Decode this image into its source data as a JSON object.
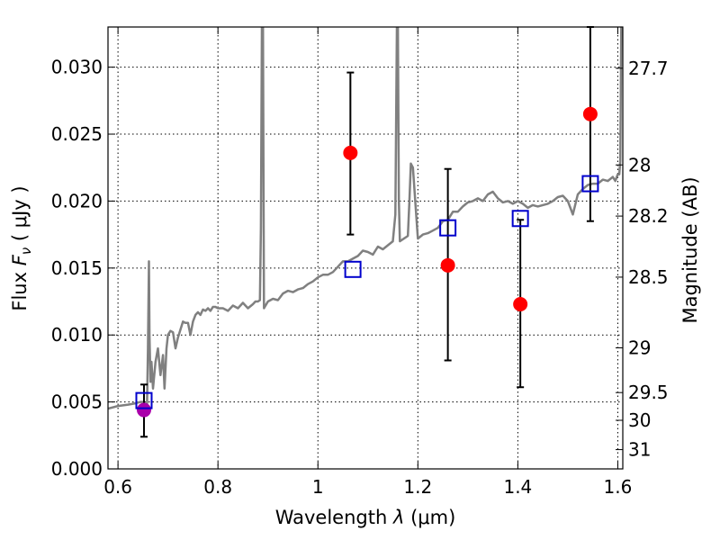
{
  "chart_data": {
    "type": "scatter",
    "xlabel_prefix": "Wavelength  ",
    "xlabel_symbol": "λ",
    "xlabel_unit": " (μm)",
    "ylabel_prefix": "Flux  ",
    "ylabel_symbol": "F",
    "ylabel_subscript": "ν",
    "ylabel_unit": "  ( μJy )",
    "ylabel_right": "Magnitude (AB)",
    "xlim": [
      0.58,
      1.61
    ],
    "ylim": [
      0.0,
      0.033
    ],
    "grid": true,
    "x_ticks": [
      0.6,
      0.8,
      1.0,
      1.2,
      1.4,
      1.6
    ],
    "x_tick_labels": [
      "0.6",
      "0.8",
      "1",
      "1.2",
      "1.4",
      "1.6"
    ],
    "y_ticks": [
      0.0,
      0.005,
      0.01,
      0.015,
      0.02,
      0.025,
      0.03
    ],
    "y_tick_labels": [
      "0.000",
      "0.005",
      "0.010",
      "0.015",
      "0.020",
      "0.025",
      "0.030"
    ],
    "right_ticks": [
      {
        "label": "27.7",
        "flux": 0.02992
      },
      {
        "label": "28",
        "flux": 0.0227
      },
      {
        "label": "28.2",
        "flux": 0.01888
      },
      {
        "label": "28.5",
        "flux": 0.01432
      },
      {
        "label": "29",
        "flux": 0.00904
      },
      {
        "label": "29.5",
        "flux": 0.0057
      },
      {
        "label": "30",
        "flux": 0.00363
      },
      {
        "label": "31",
        "flux": 0.00144
      }
    ],
    "series": [
      {
        "kind": "spectrum",
        "color": "#808080",
        "x": [
          0.58,
          0.6,
          0.62,
          0.635,
          0.645,
          0.65,
          0.655,
          0.658,
          0.66,
          0.662,
          0.663,
          0.665,
          0.667,
          0.67,
          0.675,
          0.68,
          0.685,
          0.69,
          0.693,
          0.697,
          0.7,
          0.705,
          0.71,
          0.715,
          0.72,
          0.725,
          0.73,
          0.735,
          0.74,
          0.745,
          0.75,
          0.755,
          0.76,
          0.765,
          0.77,
          0.775,
          0.78,
          0.785,
          0.79,
          0.795,
          0.8,
          0.81,
          0.82,
          0.83,
          0.84,
          0.85,
          0.86,
          0.87,
          0.875,
          0.88,
          0.884,
          0.886,
          0.888,
          0.89,
          0.892,
          0.9,
          0.91,
          0.92,
          0.93,
          0.94,
          0.95,
          0.96,
          0.97,
          0.98,
          0.99,
          1.0,
          1.01,
          1.02,
          1.03,
          1.04,
          1.05,
          1.06,
          1.07,
          1.08,
          1.09,
          1.1,
          1.11,
          1.12,
          1.13,
          1.14,
          1.15,
          1.155,
          1.158,
          1.16,
          1.162,
          1.164,
          1.168,
          1.172,
          1.176,
          1.18,
          1.183,
          1.186,
          1.19,
          1.2,
          1.21,
          1.22,
          1.23,
          1.24,
          1.25,
          1.26,
          1.27,
          1.28,
          1.29,
          1.3,
          1.31,
          1.32,
          1.33,
          1.34,
          1.35,
          1.36,
          1.37,
          1.38,
          1.39,
          1.4,
          1.41,
          1.42,
          1.43,
          1.44,
          1.45,
          1.46,
          1.47,
          1.48,
          1.49,
          1.5,
          1.51,
          1.52,
          1.53,
          1.54,
          1.55,
          1.56,
          1.57,
          1.58,
          1.59,
          1.595,
          1.6,
          1.603,
          1.605,
          1.607,
          1.61
        ],
        "y": [
          0.0045,
          0.0047,
          0.0048,
          0.0049,
          0.005,
          0.005,
          0.0048,
          0.0045,
          0.009,
          0.0155,
          0.01,
          0.0065,
          0.008,
          0.006,
          0.008,
          0.009,
          0.007,
          0.0085,
          0.006,
          0.009,
          0.01,
          0.0103,
          0.0102,
          0.009,
          0.0098,
          0.0104,
          0.011,
          0.0109,
          0.0109,
          0.01,
          0.011,
          0.0115,
          0.0117,
          0.0115,
          0.0119,
          0.0118,
          0.012,
          0.0118,
          0.0121,
          0.0121,
          0.012,
          0.012,
          0.0118,
          0.0122,
          0.012,
          0.0124,
          0.012,
          0.0123,
          0.0125,
          0.0125,
          0.0126,
          0.018,
          0.033,
          0.033,
          0.012,
          0.0125,
          0.0127,
          0.0126,
          0.0131,
          0.0133,
          0.0132,
          0.0134,
          0.0135,
          0.0138,
          0.014,
          0.0143,
          0.0145,
          0.0145,
          0.0147,
          0.0151,
          0.0155,
          0.0155,
          0.0157,
          0.0159,
          0.0163,
          0.0162,
          0.016,
          0.0166,
          0.0164,
          0.0167,
          0.017,
          0.019,
          0.033,
          0.033,
          0.02,
          0.017,
          0.0171,
          0.0172,
          0.0173,
          0.0174,
          0.02,
          0.0228,
          0.0225,
          0.0172,
          0.0175,
          0.0176,
          0.0178,
          0.018,
          0.0185,
          0.0186,
          0.0192,
          0.0192,
          0.0196,
          0.0199,
          0.02,
          0.0202,
          0.02,
          0.0205,
          0.0207,
          0.0202,
          0.0199,
          0.02,
          0.0198,
          0.02,
          0.0198,
          0.0195,
          0.0197,
          0.0196,
          0.0197,
          0.0198,
          0.02,
          0.0203,
          0.0204,
          0.02,
          0.019,
          0.0205,
          0.0209,
          0.0212,
          0.0213,
          0.0213,
          0.0216,
          0.0215,
          0.0218,
          0.0215,
          0.022,
          0.022,
          0.023,
          0.033,
          0.033
        ]
      },
      {
        "kind": "points",
        "marker": "filled-circle",
        "color": "#ff0000",
        "x": [
          1.065,
          1.26,
          1.405,
          1.545
        ],
        "y": [
          0.0236,
          0.0152,
          0.0123,
          0.0265
        ],
        "err_low": [
          0.0175,
          0.0081,
          0.0061,
          0.0185
        ],
        "err_high": [
          0.0296,
          0.0224,
          0.0186,
          0.033
        ]
      },
      {
        "kind": "points",
        "marker": "filled-circle",
        "color": "#aa00aa",
        "x": [
          0.652
        ],
        "y": [
          0.0044
        ],
        "err_low": [
          0.0024
        ],
        "err_high": [
          0.0063
        ]
      },
      {
        "kind": "points",
        "marker": "open-square",
        "color": "#0000cc",
        "x": [
          0.652,
          1.07,
          1.26,
          1.405,
          1.545
        ],
        "y": [
          0.0051,
          0.0149,
          0.018,
          0.0187,
          0.0213
        ]
      }
    ]
  }
}
